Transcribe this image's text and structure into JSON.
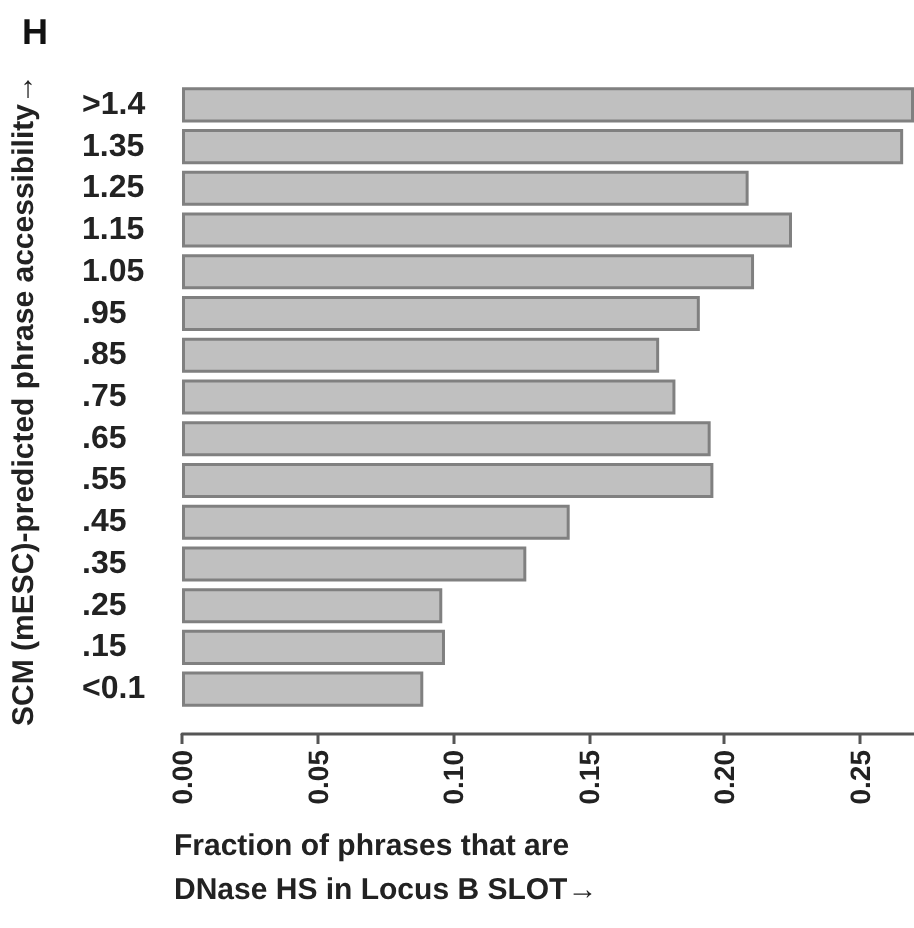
{
  "chart_data": {
    "type": "bar",
    "orientation": "horizontal",
    "title": "H",
    "categories": [
      ">1.4",
      "1.35",
      "1.25",
      "1.15",
      "1.05",
      ".95",
      ".85",
      ".75",
      ".65",
      ".55",
      ".45",
      ".35",
      ".25",
      ".15",
      "<0.1"
    ],
    "values": [
      0.27,
      0.266,
      0.209,
      0.225,
      0.211,
      0.191,
      0.176,
      0.182,
      0.195,
      0.196,
      0.143,
      0.127,
      0.096,
      0.097,
      0.089
    ],
    "color": "#c0c0c0",
    "xlim": [
      0,
      0.27
    ],
    "xticks": [
      {
        "value": 0,
        "label": "0.00"
      },
      {
        "value": 0.05,
        "label": "0.05"
      },
      {
        "value": 0.1,
        "label": "0.10"
      },
      {
        "value": 0.15,
        "label": "0.15"
      },
      {
        "value": 0.2,
        "label": "0.20"
      },
      {
        "value": 0.25,
        "label": "0.25"
      }
    ],
    "xlabel": "Fraction of phrases that are\nDNase HS in Locus B SLOT→",
    "ylabel": "SCM (mESC)-predicted phrase accessibility→",
    "grid": false
  }
}
